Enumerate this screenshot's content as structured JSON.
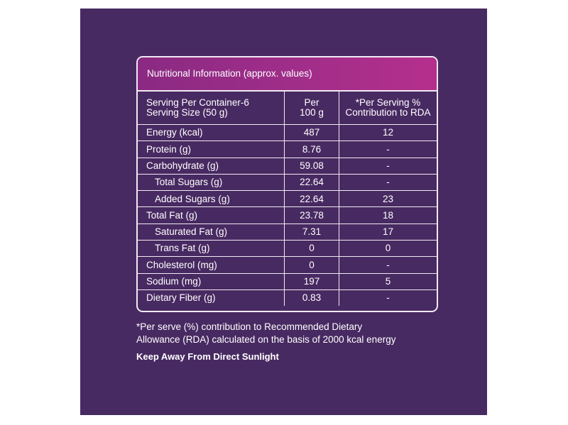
{
  "title": "Nutritional Information (approx. values)",
  "table": {
    "header": [
      [
        "Serving Per Container-6",
        "Serving Size (50 g)"
      ],
      [
        "Per",
        "100 g"
      ],
      [
        "*Per Serving %",
        "Contribution to RDA"
      ]
    ],
    "rows": [
      {
        "cells": [
          "Energy (kcal)",
          "487",
          "12"
        ],
        "indented": false
      },
      {
        "cells": [
          "Protein (g)",
          "8.76",
          "-"
        ],
        "indented": false
      },
      {
        "cells": [
          "Carbohydrate (g)",
          "59.08",
          "-"
        ],
        "indented": false
      },
      {
        "cells": [
          "Total Sugars (g)",
          "22.64",
          "-"
        ],
        "indented": true
      },
      {
        "cells": [
          "Added Sugars (g)",
          "22.64",
          "23"
        ],
        "indented": true
      },
      {
        "cells": [
          "Total Fat (g)",
          "23.78",
          "18"
        ],
        "indented": false
      },
      {
        "cells": [
          "Saturated Fat (g)",
          "7.31",
          "17"
        ],
        "indented": true
      },
      {
        "cells": [
          "Trans Fat (g)",
          "0",
          "0"
        ],
        "indented": true
      },
      {
        "cells": [
          "Cholesterol (mg)",
          "0",
          "-"
        ],
        "indented": false
      },
      {
        "cells": [
          "Sodium (mg)",
          "197",
          "5"
        ],
        "indented": false
      },
      {
        "cells": [
          "Dietary Fiber (g)",
          "0.83",
          "-"
        ],
        "indented": false
      }
    ]
  },
  "footnote": [
    "*Per serve (%) contribution to Recommended Dietary",
    "Allowance (RDA) calculated on the basis of 2000 kcal energy"
  ],
  "warning": "Keep Away From Direct Sunlight"
}
